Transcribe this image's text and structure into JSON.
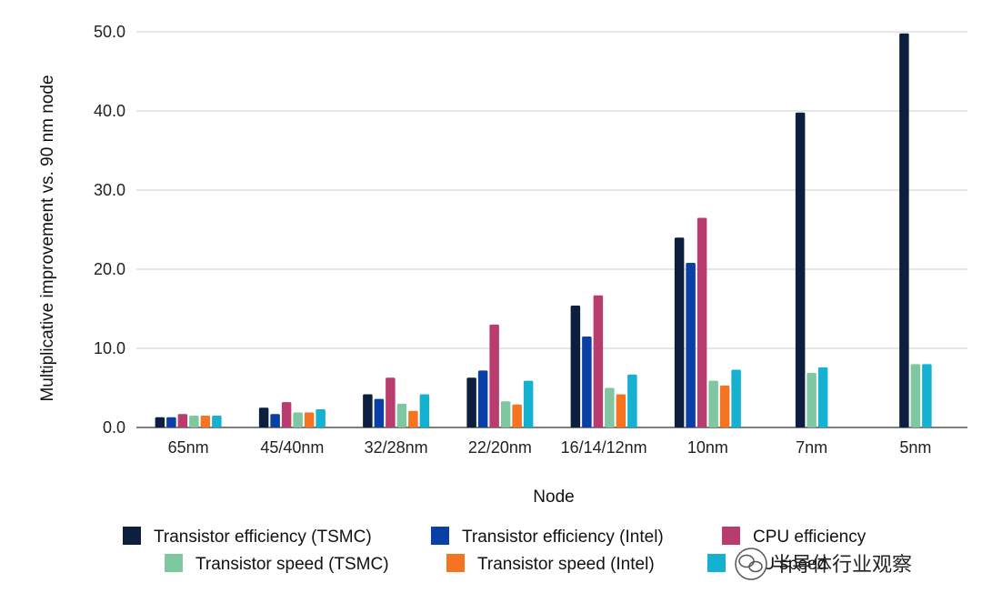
{
  "chart_data": {
    "type": "bar",
    "title": "",
    "xlabel": "Node",
    "ylabel": "Multiplicative improvement vs. 90 nm node",
    "ylim": [
      0,
      50
    ],
    "y_ticks": [
      "0.0",
      "10.0",
      "20.0",
      "30.0",
      "40.0",
      "50.0"
    ],
    "grid": "horizontal",
    "legend_placement": "bottom",
    "categories": [
      "65nm",
      "45/40nm",
      "32/28nm",
      "22/20nm",
      "16/14/12nm",
      "10nm",
      "7nm",
      "5nm"
    ],
    "series": [
      {
        "name": "Transistor efficiency (TSMC)",
        "color": "#0d1f3f",
        "values": [
          1.3,
          2.5,
          4.2,
          6.3,
          15.4,
          24.0,
          39.8,
          49.8
        ]
      },
      {
        "name": "Transistor efficiency (Intel)",
        "color": "#0a3fa6",
        "values": [
          1.3,
          1.7,
          3.6,
          7.2,
          11.5,
          20.8,
          null,
          null
        ]
      },
      {
        "name": "CPU efficiency",
        "color": "#b83c6e",
        "values": [
          1.7,
          3.2,
          6.3,
          13.0,
          16.7,
          26.5,
          null,
          null
        ]
      },
      {
        "name": "Transistor speed (TSMC)",
        "color": "#7ec7a1",
        "values": [
          1.5,
          1.9,
          3.0,
          3.3,
          5.0,
          5.9,
          6.9,
          8.0
        ]
      },
      {
        "name": "Transistor speed (Intel)",
        "color": "#f47421",
        "values": [
          1.5,
          1.9,
          2.1,
          2.9,
          4.2,
          5.3,
          null,
          null
        ]
      },
      {
        "name": "CPU speed",
        "color": "#16b0d0",
        "values": [
          1.5,
          2.3,
          4.2,
          5.9,
          6.7,
          7.3,
          7.6,
          8.0
        ]
      }
    ]
  },
  "watermark": {
    "text": "半导体行业观察",
    "icon": "wechat-icon"
  }
}
